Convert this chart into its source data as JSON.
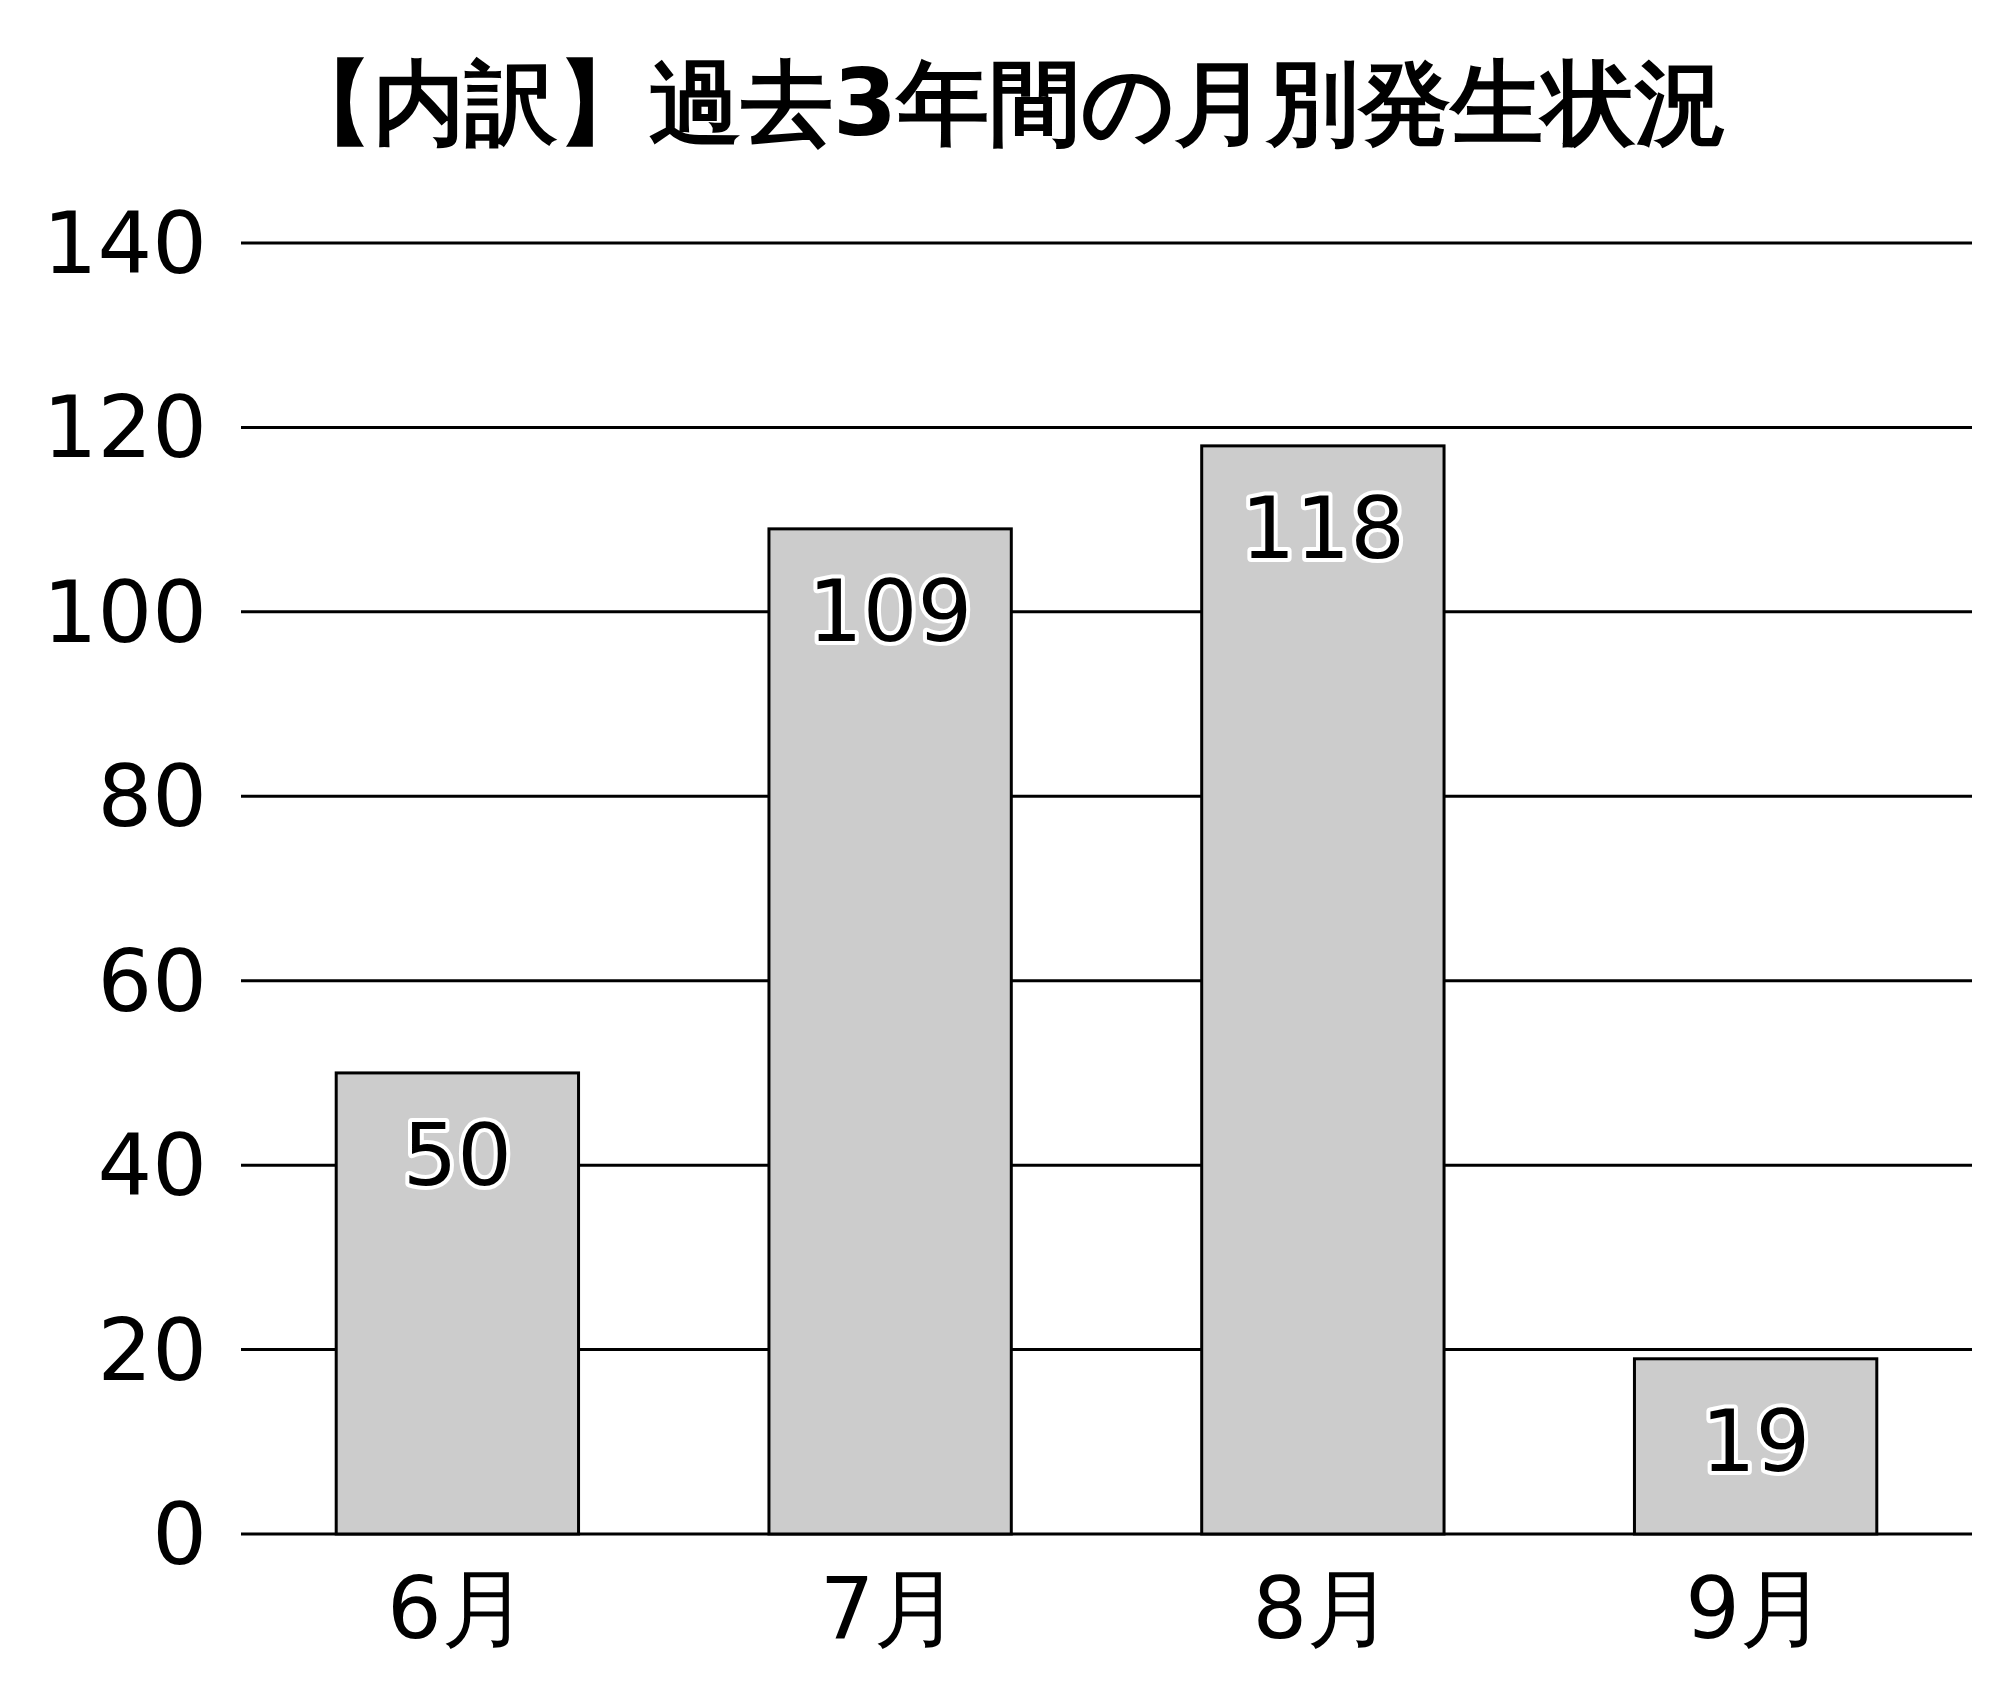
{
  "chart_data": {
    "type": "bar",
    "title": "【内訳】過去3年間の月別発生状況",
    "categories": [
      "6月",
      "7月",
      "8月",
      "9月"
    ],
    "values": [
      50,
      109,
      118,
      19
    ],
    "color": "#cccccc",
    "ylim": [
      0,
      140
    ],
    "yticks": [
      0,
      20,
      40,
      60,
      80,
      100,
      120,
      140
    ],
    "grid": "y",
    "data_labels": true
  }
}
